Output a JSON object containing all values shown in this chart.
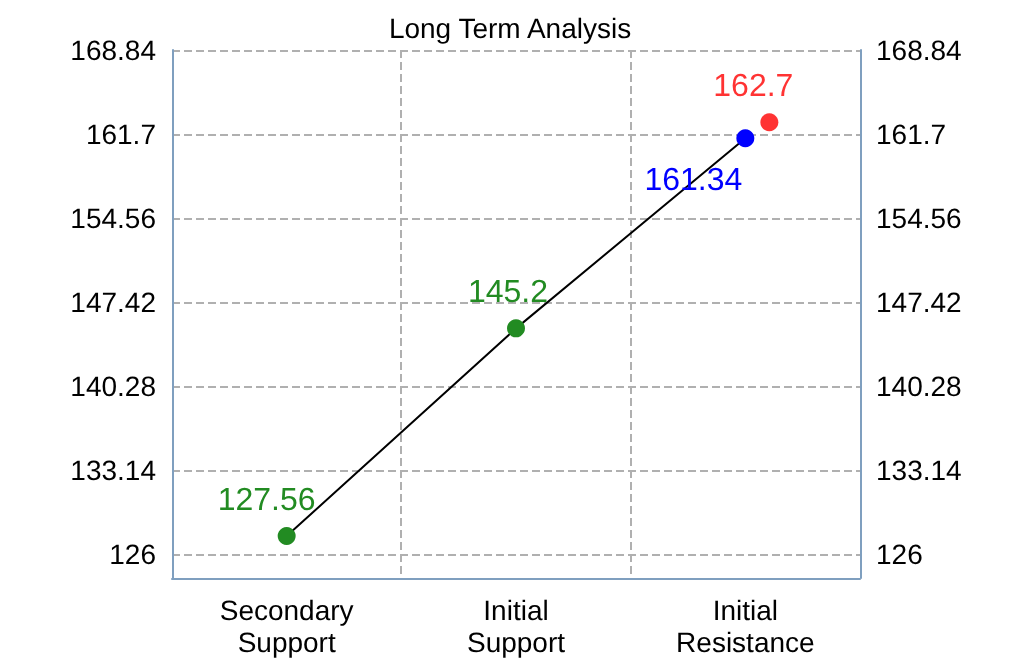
{
  "chart_data": {
    "type": "line",
    "title": "Long Term Analysis",
    "categories": [
      "Secondary\nSupport",
      "Initial\nSupport",
      "Initial\nResistance"
    ],
    "series": [
      {
        "type": "line",
        "color": "#000000",
        "values": [
          127.56,
          145.2,
          161.34
        ],
        "colors": [
          "#228b22",
          "#228b22",
          "#0000ff"
        ]
      },
      {
        "type": "scatter",
        "color": "#ff0000",
        "values": [
          null,
          null,
          162.7
        ]
      }
    ],
    "ylim": [
      124,
      168.84
    ],
    "yticks": [
      126,
      133.14,
      140.28,
      147.42,
      154.56,
      161.7,
      168.84
    ],
    "y2lim": [
      124,
      168.84
    ],
    "y2ticks": [
      126,
      133.14,
      140.28,
      147.42,
      154.56,
      161.7,
      168.84
    ],
    "grid": true,
    "data_labels": true,
    "marker": "circle"
  }
}
